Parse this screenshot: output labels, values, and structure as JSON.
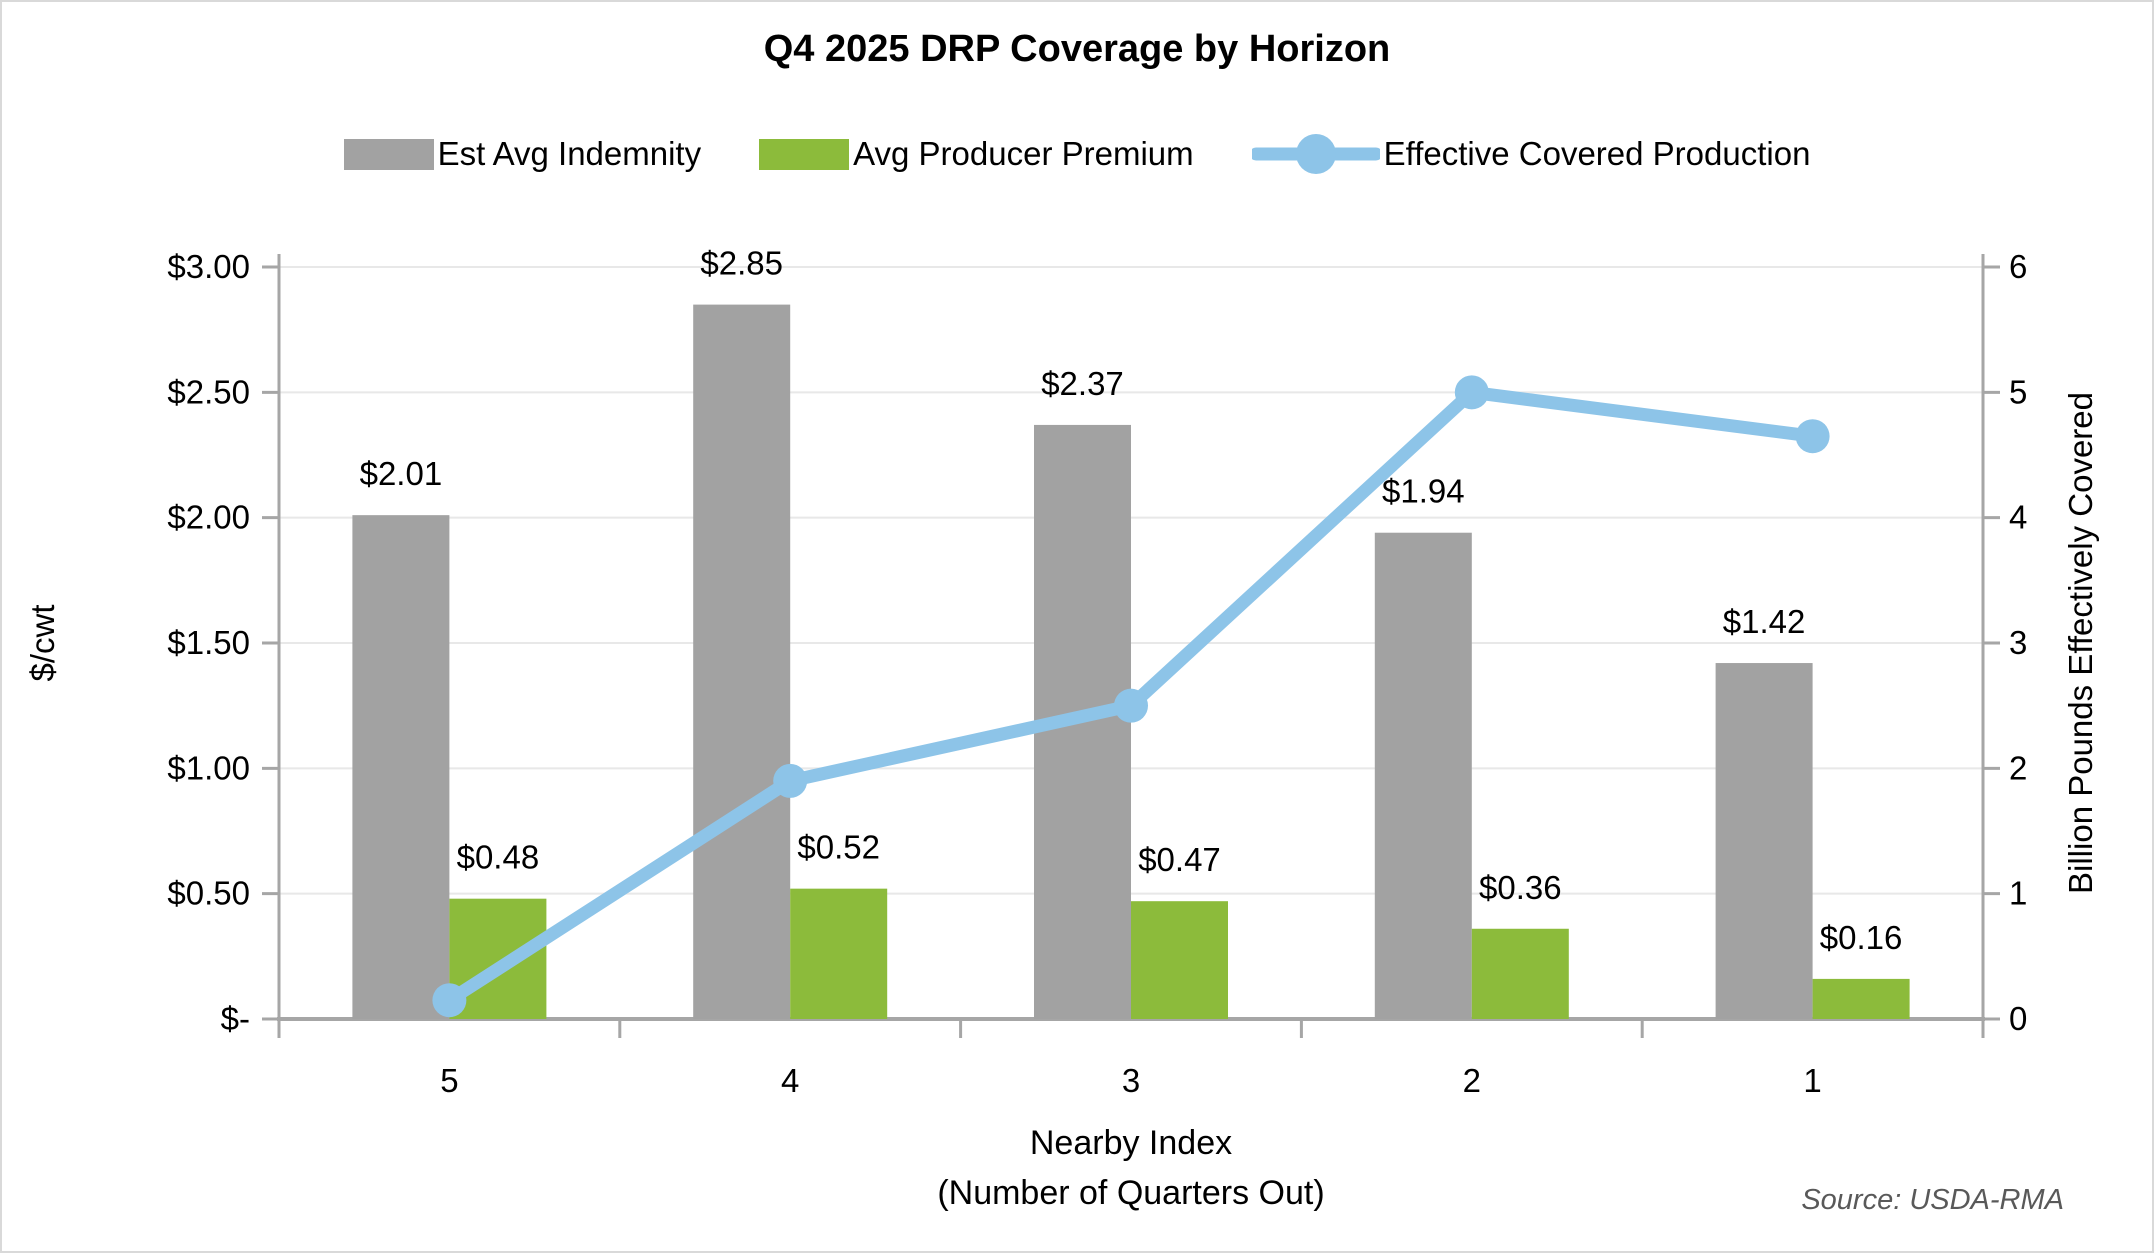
{
  "title": "Q4 2025 DRP Coverage by Horizon",
  "legend": [
    {
      "label": "Est Avg Indemnity",
      "swatch": "bar",
      "color": "#a2a2a2"
    },
    {
      "label": "Avg Producer Premium",
      "swatch": "bar",
      "color": "#8cbb3b"
    },
    {
      "label": "Effective Covered Production",
      "swatch": "line-marker",
      "color": "#8dc4e8"
    }
  ],
  "chart_data": {
    "type": "combo",
    "categories": [
      "5",
      "4",
      "3",
      "2",
      "1"
    ],
    "series": [
      {
        "name": "Est Avg Indemnity",
        "type": "bar",
        "axis": "left",
        "color": "#a2a2a2",
        "values": [
          2.01,
          2.85,
          2.37,
          1.94,
          1.42
        ],
        "labels": [
          "$2.01",
          "$2.85",
          "$2.37",
          "$1.94",
          "$1.42"
        ]
      },
      {
        "name": "Avg Producer Premium",
        "type": "bar",
        "axis": "left",
        "color": "#8cbb3b",
        "values": [
          0.48,
          0.52,
          0.47,
          0.36,
          0.16
        ],
        "labels": [
          "$0.48",
          "$0.52",
          "$0.47",
          "$0.36",
          "$0.16"
        ]
      },
      {
        "name": "Effective Covered Production",
        "type": "line",
        "axis": "right",
        "color": "#8dc4e8",
        "values": [
          0.15,
          1.9,
          2.5,
          5.0,
          4.65
        ]
      }
    ],
    "left_axis": {
      "title": "$/cwt",
      "min": 0,
      "max": 3,
      "ticks": [
        "$3.00",
        "$2.50",
        "$2.00",
        "$1.50",
        "$1.00",
        "$0.50",
        "$-"
      ]
    },
    "right_axis": {
      "title": "Billion Pounds Effectively Covered",
      "min": 0,
      "max": 6,
      "ticks": [
        "6",
        "5",
        "4",
        "3",
        "2",
        "1",
        "0"
      ]
    },
    "x_axis": {
      "title_line1": "Nearby Index",
      "title_line2": "(Number of Quarters Out)"
    },
    "gridlines": true,
    "legend_position": "top"
  },
  "colors": {
    "grid": "#e8e8e8",
    "axis": "#a6a6a6",
    "text": "#000000",
    "source_text": "#595959"
  },
  "source_note": "Source: USDA-RMA"
}
